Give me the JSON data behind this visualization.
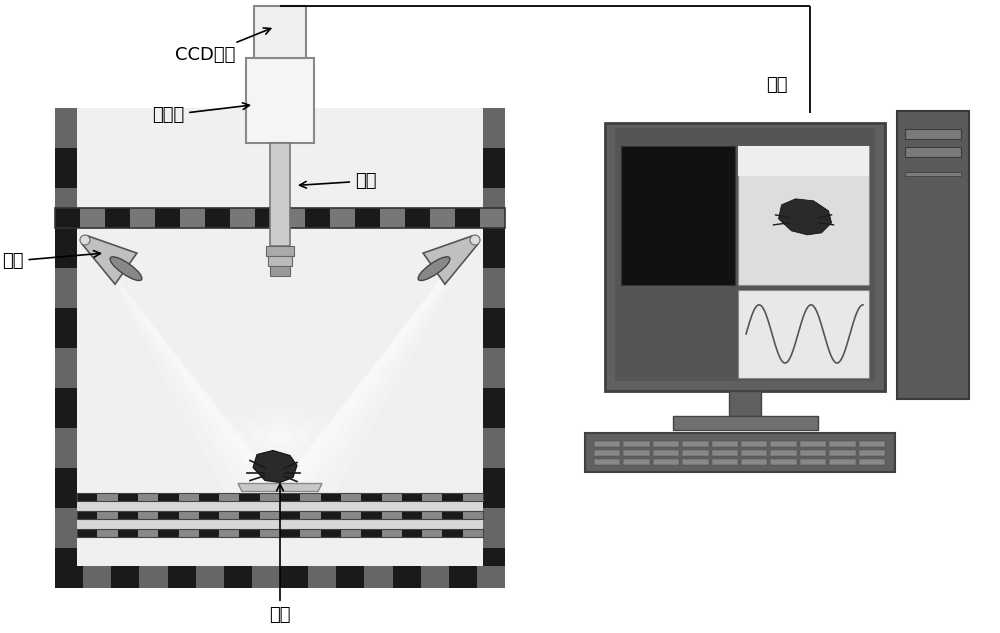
{
  "bg_color": "#ffffff",
  "labels": {
    "ccd": "CCD相机",
    "spectrometer": "光谱仪",
    "lens": "镜头",
    "light_source": "光源",
    "sample": "样品",
    "computer": "电脑"
  },
  "font_size": 12
}
